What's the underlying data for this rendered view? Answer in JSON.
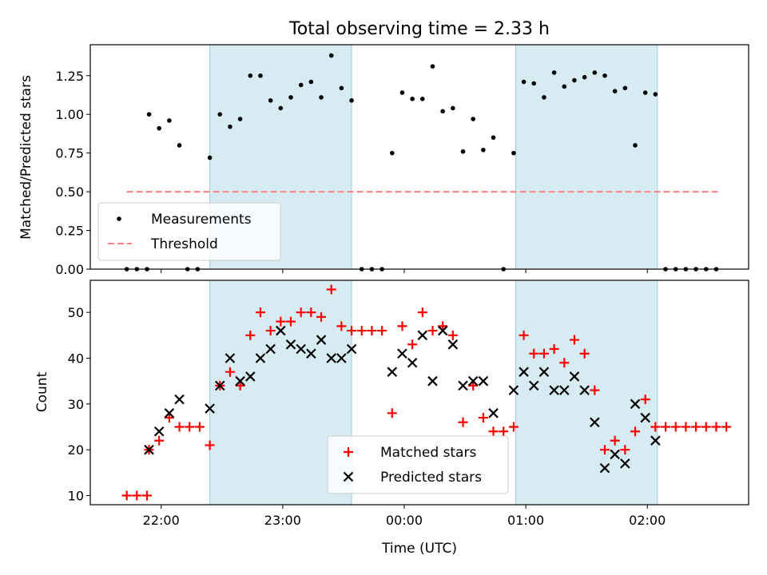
{
  "chart_data": [
    {
      "type": "scatter",
      "title": "Total observing time = 2.33 h",
      "ylabel": "Matched/Predicted stars",
      "ylim": [
        0,
        1.45
      ],
      "yticks": [
        "0.00",
        "0.25",
        "0.50",
        "0.75",
        "1.00",
        "1.25"
      ],
      "xlim": [
        "21:25",
        "02:50"
      ],
      "x_tick_labels_shown": false,
      "grid": false,
      "legend": "lower-left",
      "shaded_intervals": [
        [
          "22:24",
          "23:34"
        ],
        [
          "00:55",
          "02:05"
        ]
      ],
      "threshold": {
        "name": "Threshold",
        "value": 0.5,
        "x_range": [
          "21:43",
          "02:36"
        ],
        "color": "#ff8080",
        "style": "dashed"
      },
      "series": [
        {
          "name": "Measurements",
          "marker": "dot",
          "color": "#000000",
          "points": [
            [
              "21:43",
              0.0
            ],
            [
              "21:48",
              0.0
            ],
            [
              "21:53",
              0.0
            ],
            [
              "21:54",
              1.0
            ],
            [
              "21:59",
              0.91
            ],
            [
              "22:04",
              0.96
            ],
            [
              "22:09",
              0.8
            ],
            [
              "22:13",
              0.0
            ],
            [
              "22:18",
              0.0
            ],
            [
              "22:24",
              0.72
            ],
            [
              "22:29",
              1.0
            ],
            [
              "22:34",
              0.92
            ],
            [
              "22:39",
              0.97
            ],
            [
              "22:44",
              1.25
            ],
            [
              "22:49",
              1.25
            ],
            [
              "22:54",
              1.09
            ],
            [
              "22:59",
              1.04
            ],
            [
              "23:04",
              1.11
            ],
            [
              "23:09",
              1.19
            ],
            [
              "23:14",
              1.21
            ],
            [
              "23:19",
              1.11
            ],
            [
              "23:24",
              1.38
            ],
            [
              "23:29",
              1.17
            ],
            [
              "23:34",
              1.09
            ],
            [
              "23:39",
              0.0
            ],
            [
              "23:44",
              0.0
            ],
            [
              "23:49",
              0.0
            ],
            [
              "23:54",
              0.75
            ],
            [
              "23:59",
              1.14
            ],
            [
              "00:04",
              1.1
            ],
            [
              "00:09",
              1.1
            ],
            [
              "00:14",
              1.31
            ],
            [
              "00:19",
              1.02
            ],
            [
              "00:24",
              1.04
            ],
            [
              "00:29",
              0.76
            ],
            [
              "00:34",
              0.97
            ],
            [
              "00:39",
              0.77
            ],
            [
              "00:44",
              0.85
            ],
            [
              "00:49",
              0.0
            ],
            [
              "00:54",
              0.75
            ],
            [
              "00:59",
              1.21
            ],
            [
              "01:04",
              1.2
            ],
            [
              "01:09",
              1.11
            ],
            [
              "01:14",
              1.27
            ],
            [
              "01:19",
              1.18
            ],
            [
              "01:24",
              1.22
            ],
            [
              "01:29",
              1.24
            ],
            [
              "01:34",
              1.27
            ],
            [
              "01:39",
              1.25
            ],
            [
              "01:44",
              1.15
            ],
            [
              "01:49",
              1.17
            ],
            [
              "01:54",
              0.8
            ],
            [
              "01:59",
              1.14
            ],
            [
              "02:04",
              1.13
            ],
            [
              "02:09",
              0.0
            ],
            [
              "02:14",
              0.0
            ],
            [
              "02:19",
              0.0
            ],
            [
              "02:24",
              0.0
            ],
            [
              "02:29",
              0.0
            ],
            [
              "02:34",
              0.0
            ]
          ]
        }
      ]
    },
    {
      "type": "scatter",
      "xlabel": "Time (UTC)",
      "ylabel": "Count",
      "ylim": [
        8,
        57
      ],
      "yticks": [
        "10",
        "20",
        "30",
        "40",
        "50"
      ],
      "xlim": [
        "21:25",
        "02:50"
      ],
      "xticks": [
        "22:00",
        "23:00",
        "00:00",
        "01:00",
        "02:00"
      ],
      "grid": false,
      "legend": "lower-center",
      "shaded_intervals": [
        [
          "22:24",
          "23:34"
        ],
        [
          "00:55",
          "02:05"
        ]
      ],
      "series": [
        {
          "name": "Matched stars",
          "marker": "plus",
          "color": "#ff0000",
          "points": [
            [
              "21:43",
              10
            ],
            [
              "21:48",
              10
            ],
            [
              "21:53",
              10
            ],
            [
              "21:54",
              20
            ],
            [
              "21:59",
              22
            ],
            [
              "22:04",
              27
            ],
            [
              "22:09",
              25
            ],
            [
              "22:14",
              25
            ],
            [
              "22:19",
              25
            ],
            [
              "22:24",
              21
            ],
            [
              "22:29",
              34
            ],
            [
              "22:34",
              37
            ],
            [
              "22:39",
              34
            ],
            [
              "22:44",
              45
            ],
            [
              "22:49",
              50
            ],
            [
              "22:54",
              46
            ],
            [
              "22:59",
              48
            ],
            [
              "23:04",
              48
            ],
            [
              "23:09",
              50
            ],
            [
              "23:14",
              50
            ],
            [
              "23:19",
              49
            ],
            [
              "23:24",
              55
            ],
            [
              "23:29",
              47
            ],
            [
              "23:34",
              46
            ],
            [
              "23:39",
              46
            ],
            [
              "23:44",
              46
            ],
            [
              "23:49",
              46
            ],
            [
              "23:54",
              28
            ],
            [
              "23:59",
              47
            ],
            [
              "00:04",
              43
            ],
            [
              "00:09",
              50
            ],
            [
              "00:14",
              46
            ],
            [
              "00:19",
              47
            ],
            [
              "00:24",
              45
            ],
            [
              "00:29",
              26
            ],
            [
              "00:34",
              34
            ],
            [
              "00:39",
              27
            ],
            [
              "00:44",
              24
            ],
            [
              "00:49",
              24
            ],
            [
              "00:54",
              25
            ],
            [
              "00:59",
              45
            ],
            [
              "01:04",
              41
            ],
            [
              "01:09",
              41
            ],
            [
              "01:14",
              42
            ],
            [
              "01:19",
              39
            ],
            [
              "01:24",
              44
            ],
            [
              "01:29",
              41
            ],
            [
              "01:34",
              33
            ],
            [
              "01:39",
              20
            ],
            [
              "01:44",
              22
            ],
            [
              "01:49",
              20
            ],
            [
              "01:54",
              24
            ],
            [
              "01:59",
              31
            ],
            [
              "02:04",
              25
            ],
            [
              "02:09",
              25
            ],
            [
              "02:14",
              25
            ],
            [
              "02:19",
              25
            ],
            [
              "02:24",
              25
            ],
            [
              "02:29",
              25
            ],
            [
              "02:34",
              25
            ],
            [
              "02:39",
              25
            ]
          ]
        },
        {
          "name": "Predicted stars",
          "marker": "x",
          "color": "#000000",
          "points": [
            [
              "21:54",
              20
            ],
            [
              "21:59",
              24
            ],
            [
              "22:04",
              28
            ],
            [
              "22:09",
              31
            ],
            [
              "22:24",
              29
            ],
            [
              "22:29",
              34
            ],
            [
              "22:34",
              40
            ],
            [
              "22:39",
              35
            ],
            [
              "22:44",
              36
            ],
            [
              "22:49",
              40
            ],
            [
              "22:54",
              42
            ],
            [
              "22:59",
              46
            ],
            [
              "23:04",
              43
            ],
            [
              "23:09",
              42
            ],
            [
              "23:14",
              41
            ],
            [
              "23:19",
              44
            ],
            [
              "23:24",
              40
            ],
            [
              "23:29",
              40
            ],
            [
              "23:34",
              42
            ],
            [
              "23:54",
              37
            ],
            [
              "23:59",
              41
            ],
            [
              "00:04",
              39
            ],
            [
              "00:09",
              45
            ],
            [
              "00:14",
              35
            ],
            [
              "00:19",
              46
            ],
            [
              "00:24",
              43
            ],
            [
              "00:29",
              34
            ],
            [
              "00:34",
              35
            ],
            [
              "00:39",
              35
            ],
            [
              "00:44",
              28
            ],
            [
              "00:54",
              33
            ],
            [
              "00:59",
              37
            ],
            [
              "01:04",
              34
            ],
            [
              "01:09",
              37
            ],
            [
              "01:14",
              33
            ],
            [
              "01:19",
              33
            ],
            [
              "01:24",
              36
            ],
            [
              "01:29",
              33
            ],
            [
              "01:34",
              26
            ],
            [
              "01:39",
              16
            ],
            [
              "01:44",
              19
            ],
            [
              "01:49",
              17
            ],
            [
              "01:54",
              30
            ],
            [
              "01:59",
              27
            ],
            [
              "02:04",
              22
            ]
          ]
        }
      ]
    }
  ]
}
